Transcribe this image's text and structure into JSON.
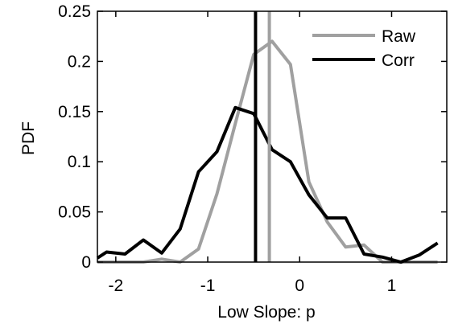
{
  "chart_data": {
    "type": "line",
    "xlabel": "Low Slope: p",
    "ylabel": "PDF",
    "xlim": [
      -2.2,
      1.6
    ],
    "ylim": [
      0,
      0.25
    ],
    "x_ticks": [
      -2,
      -1,
      0,
      1
    ],
    "x_tick_labels": [
      "-2",
      "-1",
      "0",
      "1"
    ],
    "y_ticks": [
      0,
      0.05,
      0.1,
      0.15,
      0.2,
      0.25
    ],
    "y_tick_labels": [
      "0",
      "0.05",
      "0.1",
      "0.15",
      "0.2",
      "0.25"
    ],
    "legend_position": "top-right",
    "grid": false,
    "series": [
      {
        "name": "Raw",
        "color": "#a0a0a0",
        "x": [
          -2.2,
          -1.9,
          -1.7,
          -1.5,
          -1.3,
          -1.1,
          -0.9,
          -0.7,
          -0.5,
          -0.3,
          -0.1,
          0.1,
          0.3,
          0.5,
          0.7,
          0.9,
          1.1,
          1.3,
          1.5
        ],
        "y": [
          0,
          0,
          0,
          0.003,
          0,
          0.013,
          0.068,
          0.138,
          0.207,
          0.22,
          0.197,
          0.08,
          0.04,
          0.015,
          0.017,
          0,
          0,
          0,
          0
        ]
      },
      {
        "name": "Corr",
        "color": "#000000",
        "x": [
          -2.2,
          -2.1,
          -1.9,
          -1.7,
          -1.5,
          -1.3,
          -1.1,
          -0.9,
          -0.7,
          -0.5,
          -0.3,
          -0.1,
          0.1,
          0.3,
          0.5,
          0.7,
          0.9,
          1.1,
          1.3,
          1.5
        ],
        "y": [
          0.004,
          0.01,
          0.008,
          0.022,
          0.009,
          0.033,
          0.09,
          0.11,
          0.154,
          0.148,
          0.112,
          0.1,
          0.067,
          0.044,
          0.044,
          0.008,
          0.005,
          0,
          0.007,
          0.019
        ]
      }
    ],
    "vertical_lines": [
      {
        "series": "Raw",
        "x": -0.33,
        "color": "#a0a0a0"
      },
      {
        "series": "Corr",
        "x": -0.48,
        "color": "#000000"
      }
    ]
  }
}
